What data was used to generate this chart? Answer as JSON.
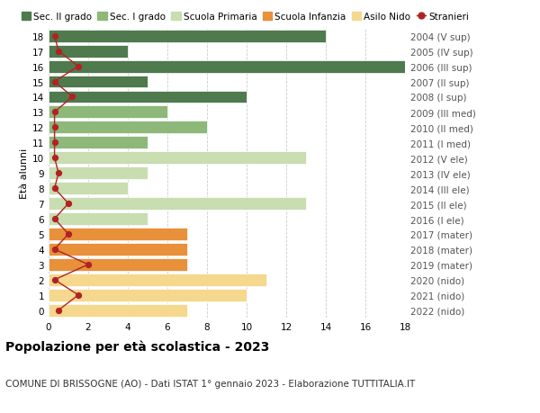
{
  "ages": [
    0,
    1,
    2,
    3,
    4,
    5,
    6,
    7,
    8,
    9,
    10,
    11,
    12,
    13,
    14,
    15,
    16,
    17,
    18
  ],
  "right_labels": [
    "2022 (nido)",
    "2021 (nido)",
    "2020 (nido)",
    "2019 (mater)",
    "2018 (mater)",
    "2017 (mater)",
    "2016 (I ele)",
    "2015 (II ele)",
    "2014 (III ele)",
    "2013 (IV ele)",
    "2012 (V ele)",
    "2011 (I med)",
    "2010 (II med)",
    "2009 (III med)",
    "2008 (I sup)",
    "2007 (II sup)",
    "2006 (III sup)",
    "2005 (IV sup)",
    "2004 (V sup)"
  ],
  "bar_values": [
    7,
    10,
    11,
    7,
    7,
    7,
    5,
    13,
    4,
    5,
    13,
    5,
    8,
    6,
    10,
    5,
    18,
    4,
    14
  ],
  "stranieri_values": [
    0.5,
    1.5,
    0.3,
    2.0,
    0.3,
    1.0,
    0.3,
    1.0,
    0.3,
    0.5,
    0.3,
    0.3,
    0.3,
    0.3,
    1.2,
    0.3,
    1.5,
    0.5,
    0.3
  ],
  "bar_colors": [
    "#f5d88e",
    "#f5d88e",
    "#f5d88e",
    "#e8903a",
    "#e8903a",
    "#e8903a",
    "#c8ddb0",
    "#c8ddb0",
    "#c8ddb0",
    "#c8ddb0",
    "#c8ddb0",
    "#8db87a",
    "#8db87a",
    "#8db87a",
    "#4e7a4e",
    "#4e7a4e",
    "#4e7a4e",
    "#4e7a4e",
    "#4e7a4e"
  ],
  "legend_labels": [
    "Sec. II grado",
    "Sec. I grado",
    "Scuola Primaria",
    "Scuola Infanzia",
    "Asilo Nido",
    "Stranieri"
  ],
  "legend_colors": [
    "#4e7a4e",
    "#8db87a",
    "#c8ddb0",
    "#e8903a",
    "#f5d88e",
    "#b22222"
  ],
  "stranieri_color": "#b22222",
  "title": "Popolazione per età scolastica - 2023",
  "subtitle": "COMUNE DI BRISSOGNE (AO) - Dati ISTAT 1° gennaio 2023 - Elaborazione TUTTITALIA.IT",
  "ylabel_left": "Età alunni",
  "xlim": [
    0,
    18
  ],
  "bar_height": 0.82,
  "grid_color": "#cccccc",
  "bg_color": "#ffffff",
  "right_axis_label_color": "#555555",
  "tick_label_fontsize": 7.5,
  "title_fontsize": 10,
  "subtitle_fontsize": 7.5,
  "legend_fontsize": 7.5
}
